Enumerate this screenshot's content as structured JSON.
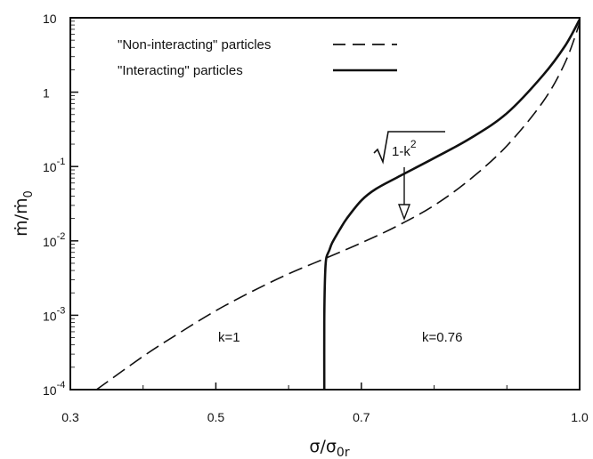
{
  "chart_data": {
    "type": "line",
    "title": "",
    "xlabel": "σ/σ0r",
    "xlabel_parts": {
      "main": "σ/σ",
      "sub": "0r"
    },
    "ylabel": "ṁ/ṁ0",
    "ylabel_parts": {
      "main": "ṁ/ṁ",
      "sub": "0"
    },
    "x_scale": "linear",
    "y_scale": "log",
    "xlim": [
      0.3,
      1.0
    ],
    "ylim": [
      0.0001,
      10
    ],
    "x_ticks": [
      {
        "value": 0.3,
        "label": "0.3"
      },
      {
        "value": 0.5,
        "label": "0.5"
      },
      {
        "value": 0.7,
        "label": "0.7"
      },
      {
        "value": 1.0,
        "label": "1.0"
      }
    ],
    "y_ticks": [
      {
        "value": 0.0001,
        "base": "10",
        "exp": "-4"
      },
      {
        "value": 0.001,
        "base": "10",
        "exp": "-3"
      },
      {
        "value": 0.01,
        "base": "10",
        "exp": "-2"
      },
      {
        "value": 0.1,
        "base": "10",
        "exp": "-1"
      },
      {
        "value": 1,
        "base": "1",
        "exp": ""
      },
      {
        "value": 10,
        "base": "10",
        "exp": ""
      }
    ],
    "grid": false,
    "legend_position": "top-left",
    "series": [
      {
        "name": "\"Non-interacting\" particles",
        "style": "dashed",
        "x": [
          0.336,
          0.4,
          0.45,
          0.5,
          0.55,
          0.6,
          0.65,
          0.7,
          0.75,
          0.8,
          0.85,
          0.9,
          0.95,
          0.98,
          1.0
        ],
        "y": [
          0.0001,
          0.00028,
          0.00058,
          0.00115,
          0.0021,
          0.0036,
          0.0058,
          0.0094,
          0.016,
          0.03,
          0.068,
          0.19,
          0.75,
          2.5,
          8.5
        ]
      },
      {
        "name": "\"Interacting\" particles",
        "style": "solid",
        "x": [
          0.649,
          0.649,
          0.6495,
          0.6505,
          0.652,
          0.656,
          0.66,
          0.67,
          0.68,
          0.7,
          0.72,
          0.75,
          0.8,
          0.85,
          0.9,
          0.95,
          0.98,
          1.0
        ],
        "y": [
          0.0001,
          0.0008,
          0.002,
          0.0042,
          0.006,
          0.0075,
          0.0095,
          0.014,
          0.02,
          0.035,
          0.05,
          0.072,
          0.13,
          0.24,
          0.52,
          1.7,
          4.2,
          9.5
        ]
      }
    ],
    "annotations": [
      {
        "type": "arrow",
        "label_sqrt": "1-k",
        "label_exp": "2",
        "x": 0.65,
        "y": 0.014
      },
      {
        "type": "text",
        "label": "k=1",
        "x": 0.47,
        "y": 0.00035
      },
      {
        "type": "text",
        "label": "k=0.76",
        "x": 0.7,
        "y": 0.00035
      }
    ]
  }
}
